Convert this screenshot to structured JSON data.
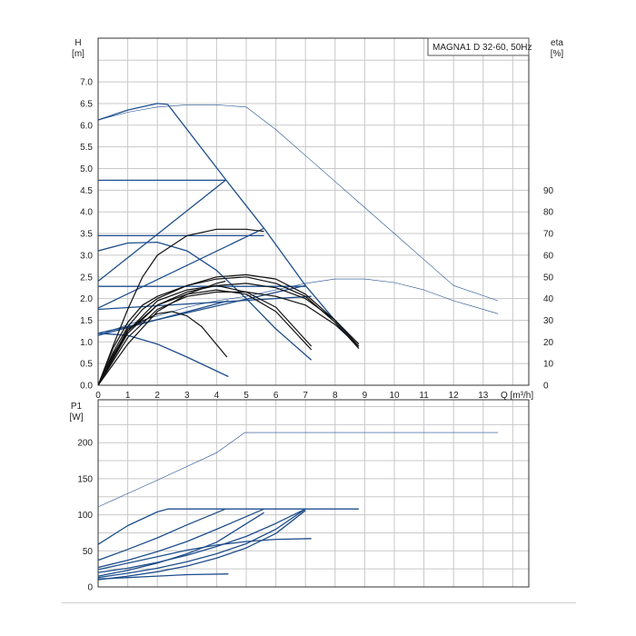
{
  "chart_data": [
    {
      "type": "line",
      "title": "MAGNA1 D 32-60, 50Hz",
      "xlabel": "Q [m³/h]",
      "ylabel_left_name": "H",
      "ylabel_left_unit": "[m]",
      "ylabel_right_name": "eta",
      "ylabel_right_unit": "[%]",
      "xlim": [
        0,
        14.5
      ],
      "ylim": [
        0,
        8
      ],
      "ylim_right_eta": [
        0,
        100
      ],
      "grid": true,
      "x_ticks": [
        "0",
        "1",
        "2",
        "3",
        "4",
        "5",
        "6",
        "7",
        "8",
        "9",
        "10",
        "11",
        "12",
        "13"
      ],
      "y_ticks": [
        "0.0",
        "0.5",
        "1.0",
        "1.5",
        "2.0",
        "2.5",
        "3.0",
        "3.5",
        "4.0",
        "4.5",
        "5.0",
        "5.5",
        "6.0",
        "6.5",
        "7.0"
      ],
      "y_right_ticks": [
        "0",
        "10",
        "20",
        "30",
        "40",
        "50",
        "60",
        "70",
        "80",
        "90"
      ],
      "series": [
        {
          "style": "thin",
          "color": "#1f4e8c",
          "x": [
            0,
            1,
            2,
            3,
            4,
            5,
            6,
            7,
            8,
            9,
            10,
            11,
            12,
            13.5
          ],
          "y": [
            6.12,
            6.3,
            6.42,
            6.47,
            6.47,
            6.42,
            5.9,
            5.3,
            4.7,
            4.1,
            3.5,
            2.9,
            2.3,
            1.95
          ]
        },
        {
          "style": "thin",
          "color": "#1f4e8c",
          "x": [
            0,
            1,
            2,
            3,
            4,
            5,
            6,
            7,
            8,
            9,
            10,
            11,
            12,
            13.5
          ],
          "y": [
            1.15,
            1.4,
            1.6,
            1.8,
            1.95,
            2.05,
            2.2,
            2.35,
            2.45,
            2.45,
            2.37,
            2.2,
            1.95,
            1.65
          ]
        },
        {
          "style": "medium",
          "color": "#1f4e8c",
          "x": [
            0,
            1,
            2,
            2.35
          ],
          "y": [
            6.12,
            6.35,
            6.5,
            6.48
          ]
        },
        {
          "style": "medium",
          "color": "#1f4e8c",
          "x": [
            2.35,
            4.3,
            5.6,
            7.0,
            8.8
          ],
          "y": [
            6.48,
            4.75,
            3.62,
            2.3,
            0.85
          ]
        },
        {
          "style": "medium",
          "color": "#1f4e8c",
          "x": [
            0,
            4.3
          ],
          "y": [
            4.73,
            4.73
          ]
        },
        {
          "style": "medium",
          "color": "#1f4e8c",
          "x": [
            0,
            5.6
          ],
          "y": [
            3.45,
            3.45
          ]
        },
        {
          "style": "medium",
          "color": "#1f4e8c",
          "x": [
            0,
            7.0
          ],
          "y": [
            2.28,
            2.28
          ]
        },
        {
          "style": "medium",
          "color": "#1f4e8c",
          "x": [
            0,
            4.3
          ],
          "y": [
            2.4,
            4.73
          ]
        },
        {
          "style": "medium",
          "color": "#1f4e8c",
          "x": [
            0,
            5.6
          ],
          "y": [
            1.78,
            3.62
          ]
        },
        {
          "style": "medium",
          "color": "#1f4e8c",
          "x": [
            0,
            7.0
          ],
          "y": [
            1.2,
            2.3
          ]
        },
        {
          "style": "medium",
          "color": "#1f4e8c",
          "x": [
            0,
            1,
            2,
            3,
            4,
            5,
            6,
            7.2
          ],
          "y": [
            3.1,
            3.28,
            3.3,
            3.1,
            2.65,
            2.0,
            1.3,
            0.58
          ]
        },
        {
          "style": "medium",
          "color": "#1f4e8c",
          "x": [
            0,
            1,
            2,
            3,
            4.4
          ],
          "y": [
            1.2,
            1.15,
            0.95,
            0.65,
            0.2
          ]
        },
        {
          "style": "medium",
          "color": "#1f4e8c",
          "x": [
            0,
            4.4
          ],
          "y": [
            1.15,
            1.95
          ]
        },
        {
          "style": "medium",
          "color": "#1f4e8c",
          "x": [
            0,
            7.2
          ],
          "y": [
            1.75,
            2.05
          ]
        },
        {
          "style": "black",
          "color": "#111111",
          "x": [
            0,
            0.5,
            1,
            1.5,
            2,
            3,
            4,
            5,
            6,
            7,
            8,
            8.8
          ],
          "y": [
            0,
            0.85,
            1.45,
            1.85,
            2.05,
            2.3,
            2.45,
            2.5,
            2.35,
            2.05,
            1.45,
            0.85
          ]
        },
        {
          "style": "black",
          "color": "#111111",
          "x": [
            0,
            0.5,
            1,
            1.5,
            2,
            3,
            4,
            5,
            6,
            7,
            8,
            8.8
          ],
          "y": [
            0,
            0.75,
            1.35,
            1.75,
            2.0,
            2.3,
            2.5,
            2.55,
            2.45,
            2.1,
            1.5,
            0.9
          ]
        },
        {
          "style": "black",
          "color": "#111111",
          "x": [
            0,
            0.5,
            1,
            2,
            3,
            4,
            5,
            6,
            7,
            8,
            8.8
          ],
          "y": [
            0,
            0.7,
            1.25,
            1.85,
            2.15,
            2.3,
            2.35,
            2.25,
            2.0,
            1.5,
            0.95
          ]
        },
        {
          "style": "black",
          "color": "#111111",
          "x": [
            0,
            1,
            2,
            3,
            4,
            5,
            6,
            7,
            8,
            8.8
          ],
          "y": [
            0,
            1.1,
            1.75,
            2.05,
            2.15,
            2.15,
            2.05,
            1.85,
            1.4,
            0.9
          ]
        },
        {
          "style": "black",
          "color": "#111111",
          "x": [
            0,
            1,
            2,
            2.5,
            3,
            3.5,
            4.35
          ],
          "y": [
            0,
            1.3,
            1.65,
            1.7,
            1.6,
            1.35,
            0.65
          ]
        },
        {
          "style": "black",
          "color": "#111111",
          "x": [
            0,
            1,
            2,
            3,
            4,
            5,
            6,
            7.2
          ],
          "y": [
            0,
            1.2,
            1.85,
            2.1,
            2.2,
            2.1,
            1.7,
            0.82
          ]
        },
        {
          "style": "black",
          "color": "#111111",
          "x": [
            0,
            1,
            2,
            3,
            4,
            5,
            6,
            7.2
          ],
          "y": [
            0,
            1.25,
            1.95,
            2.2,
            2.3,
            2.15,
            1.8,
            0.9
          ]
        },
        {
          "style": "black",
          "color": "#111111",
          "x": [
            0,
            0.5,
            1,
            1.5,
            2,
            3,
            4,
            5,
            5.6
          ],
          "y": [
            0,
            0.9,
            1.75,
            2.5,
            3.0,
            3.45,
            3.6,
            3.6,
            3.55
          ]
        },
        {
          "style": "black",
          "color": "#111111",
          "x": [
            0,
            1,
            2,
            3,
            4,
            4.3
          ],
          "y": [
            0,
            0.95,
            1.7,
            2.1,
            2.35,
            2.4
          ]
        }
      ]
    },
    {
      "type": "line",
      "title": "",
      "xlabel": "",
      "ylabel_name": "P1",
      "ylabel_unit": "[W]",
      "xlim": [
        0,
        14.5
      ],
      "ylim": [
        0,
        240
      ],
      "grid": true,
      "y_ticks": [
        "0",
        "50",
        "100",
        "150",
        "200"
      ],
      "series": [
        {
          "style": "thin",
          "color": "#1f4e8c",
          "x": [
            0,
            2,
            4,
            4.95,
            6,
            8,
            10,
            11,
            12,
            13.5
          ],
          "y": [
            111,
            148,
            186,
            214,
            214,
            214,
            214,
            214,
            214,
            214
          ]
        },
        {
          "style": "medium",
          "color": "#1f4e8c",
          "x": [
            2.35,
            4.3,
            5.6,
            7.0,
            8.8
          ],
          "y": [
            108,
            108,
            108,
            108,
            108
          ]
        },
        {
          "style": "medium",
          "color": "#1f4e8c",
          "x": [
            0,
            1,
            2,
            2.35
          ],
          "y": [
            59,
            85,
            104,
            108
          ]
        },
        {
          "style": "medium",
          "color": "#1f4e8c",
          "x": [
            0,
            1,
            2,
            3,
            4.3
          ],
          "y": [
            37,
            52,
            68,
            86,
            108
          ]
        },
        {
          "style": "medium",
          "color": "#1f4e8c",
          "x": [
            0,
            1,
            2,
            3,
            4,
            5.6
          ],
          "y": [
            27,
            37,
            49,
            63,
            80,
            108
          ]
        },
        {
          "style": "medium",
          "color": "#1f4e8c",
          "x": [
            0,
            1,
            2,
            3,
            4,
            5,
            6,
            7.0
          ],
          "y": [
            20,
            26,
            34,
            44,
            56,
            70,
            88,
            108
          ]
        },
        {
          "style": "medium",
          "color": "#1f4e8c",
          "x": [
            0,
            1,
            2,
            3,
            4,
            5,
            6,
            7.2
          ],
          "y": [
            24,
            33,
            42,
            51,
            58,
            63,
            66,
            67
          ]
        },
        {
          "style": "medium",
          "color": "#1f4e8c",
          "x": [
            0,
            1,
            2,
            3,
            4.4
          ],
          "y": [
            11,
            13,
            15,
            17,
            18
          ]
        },
        {
          "style": "medium",
          "color": "#1f4e8c",
          "x": [
            0,
            1,
            2,
            3,
            4,
            5,
            6,
            7.0
          ],
          "y": [
            13,
            19,
            26,
            35,
            46,
            60,
            80,
            108
          ]
        },
        {
          "style": "medium",
          "color": "#1f4e8c",
          "x": [
            0,
            1,
            2,
            3,
            4,
            5,
            6,
            7.0
          ],
          "y": [
            10,
            15,
            21,
            29,
            40,
            54,
            74,
            106
          ]
        },
        {
          "style": "medium",
          "color": "#1f4e8c",
          "x": [
            0,
            1,
            2,
            3,
            4,
            5.6
          ],
          "y": [
            15,
            23,
            33,
            46,
            62,
            103
          ]
        }
      ]
    }
  ]
}
